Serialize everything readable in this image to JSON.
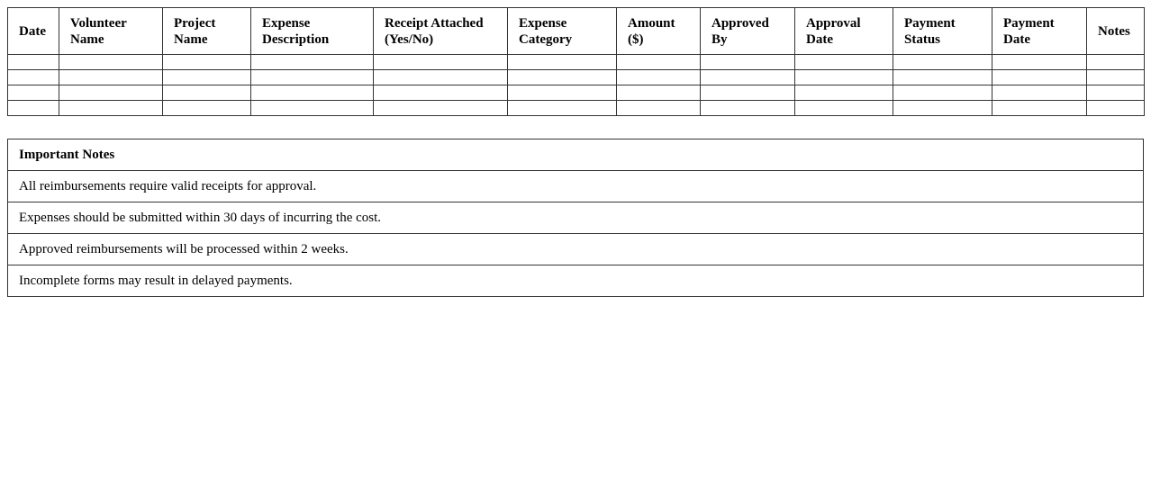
{
  "expense_table": {
    "headers": [
      "Date",
      "Volunteer Name",
      "Project Name",
      "Expense Description",
      "Receipt Attached (Yes/No)",
      "Expense Category",
      "Amount ($)",
      "Approved By",
      "Approval Date",
      "Payment Status",
      "Payment Date",
      "Notes"
    ],
    "rows": [
      [
        "",
        "",
        "",
        "",
        "",
        "",
        "",
        "",
        "",
        "",
        "",
        ""
      ],
      [
        "",
        "",
        "",
        "",
        "",
        "",
        "",
        "",
        "",
        "",
        "",
        ""
      ],
      [
        "",
        "",
        "",
        "",
        "",
        "",
        "",
        "",
        "",
        "",
        "",
        ""
      ],
      [
        "",
        "",
        "",
        "",
        "",
        "",
        "",
        "",
        "",
        "",
        "",
        ""
      ]
    ]
  },
  "notes": {
    "title": "Important Notes",
    "items": [
      "All reimbursements require valid receipts for approval.",
      "Expenses should be submitted within 30 days of incurring the cost.",
      "Approved reimbursements will be processed within 2 weeks.",
      "Incomplete forms may result in delayed payments."
    ]
  }
}
